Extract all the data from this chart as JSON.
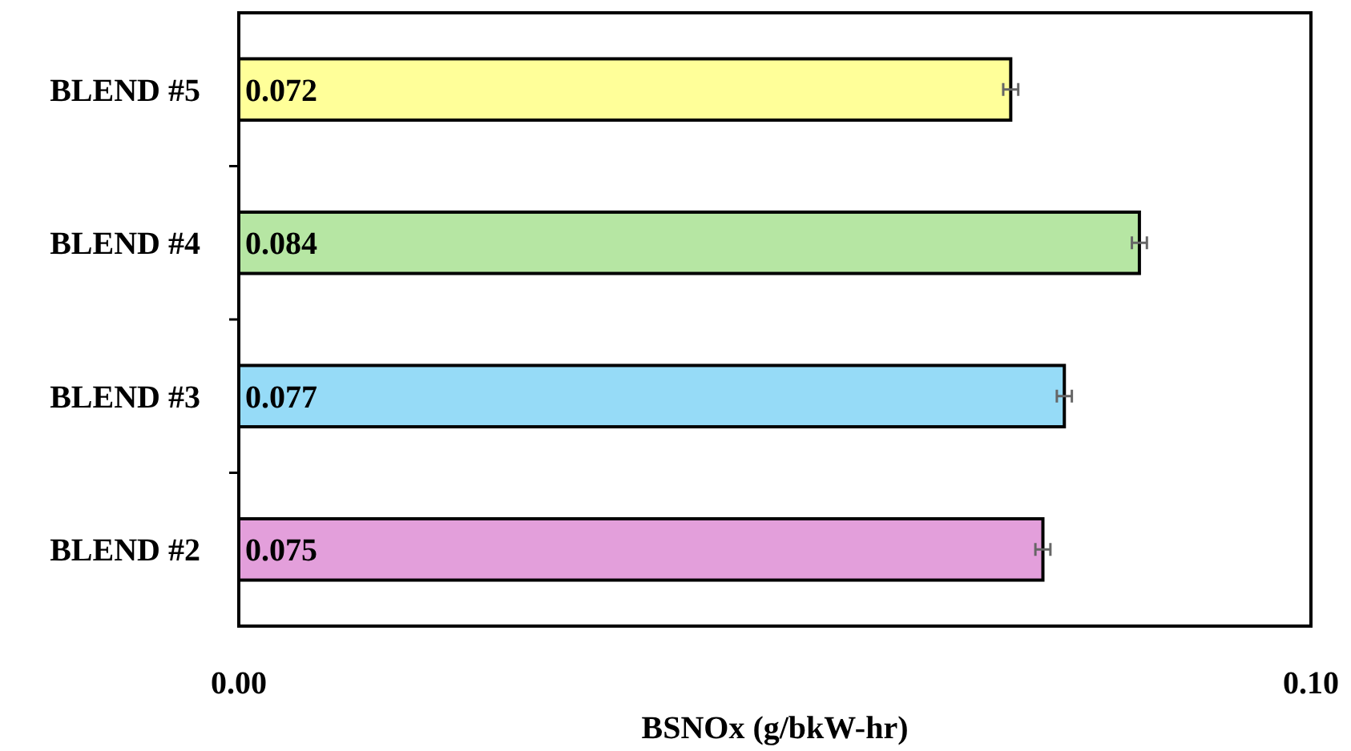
{
  "chart_data": {
    "type": "bar",
    "orientation": "horizontal",
    "xlabel": "BSNOx (g/bkW-hr)",
    "categories": [
      "BLEND #5",
      "BLEND #4",
      "BLEND #3",
      "BLEND #2"
    ],
    "values": [
      0.072,
      0.084,
      0.077,
      0.075
    ],
    "colors": [
      "#ffff99",
      "#b6e6a3",
      "#96dbf7",
      "#e39fdb"
    ],
    "errors": [
      0.0007,
      0.0007,
      0.0007,
      0.0007
    ],
    "data_labels": true,
    "xlim": [
      0,
      0.1
    ],
    "xticks": [
      {
        "value": 0,
        "label": "0.00"
      },
      {
        "value": 0.1,
        "label": "0.10"
      }
    ],
    "grid": false
  }
}
